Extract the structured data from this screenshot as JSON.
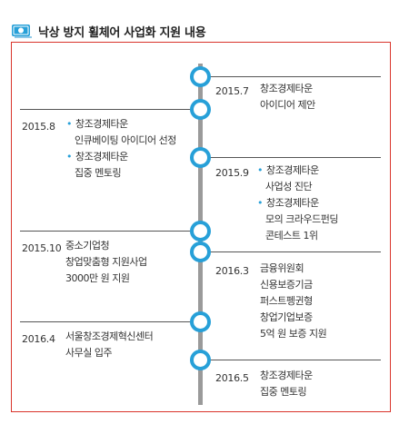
{
  "header": {
    "icon": "money-icon",
    "title": "낙상 방지 휠체어 사업화 지원 내용"
  },
  "colors": {
    "accent": "#27a0d8",
    "border": "#d9342b",
    "spine": "#9a9a9a"
  },
  "events": [
    {
      "date": "2015.7",
      "lines": [
        {
          "text": "창조경제타운",
          "bullet": false
        },
        {
          "text": "아이디어 제안",
          "bullet": false
        }
      ]
    },
    {
      "date": "2015.8",
      "lines": [
        {
          "text": "창조경제타운",
          "bullet": true
        },
        {
          "text": "인큐베이팅 아이디어 선정",
          "bullet": false
        },
        {
          "text": "창조경제타운",
          "bullet": true
        },
        {
          "text": "집중 멘토링",
          "bullet": false
        }
      ]
    },
    {
      "date": "2015.9",
      "lines": [
        {
          "text": "창조경제타운",
          "bullet": true
        },
        {
          "text": "사업성 진단",
          "bullet": false
        },
        {
          "text": "창조경제타운",
          "bullet": true
        },
        {
          "text": "모의 크라우드펀딩",
          "bullet": false
        },
        {
          "text": "콘테스트 1위",
          "bullet": false
        }
      ]
    },
    {
      "date": "2015.10",
      "lines": [
        {
          "text": "중소기업청",
          "bullet": false
        },
        {
          "text": "창업맞춤형 지원사업",
          "bullet": false
        },
        {
          "text": "3000만 원 지원",
          "bullet": false
        }
      ]
    },
    {
      "date": "2016.3",
      "lines": [
        {
          "text": "금융위원회",
          "bullet": false
        },
        {
          "text": "신용보증기금",
          "bullet": false
        },
        {
          "text": "퍼스트펭귄형",
          "bullet": false
        },
        {
          "text": "창업기업보증",
          "bullet": false
        },
        {
          "text": "5억 원 보증 지원",
          "bullet": false
        }
      ]
    },
    {
      "date": "2016.4",
      "lines": [
        {
          "text": "서울창조경제혁신센터",
          "bullet": false
        },
        {
          "text": "사무실 입주",
          "bullet": false
        }
      ]
    },
    {
      "date": "2016.5",
      "lines": [
        {
          "text": "창조경제타운",
          "bullet": false
        },
        {
          "text": "집중 멘토링",
          "bullet": false
        }
      ]
    }
  ]
}
